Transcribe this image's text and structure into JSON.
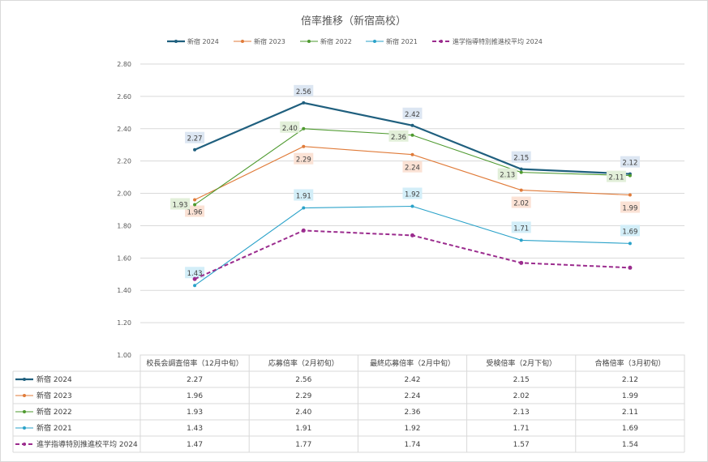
{
  "chart_data": {
    "type": "line",
    "title": "倍率推移（新宿高校）",
    "categories": [
      "校長会調査倍率（12月中旬）",
      "応募倍率（2月初旬）",
      "最終応募倍率（2月中旬）",
      "受検倍率（2月下旬）",
      "合格倍率（3月初旬）"
    ],
    "ylim": [
      1.0,
      2.8
    ],
    "yticks": [
      "1.00",
      "1.20",
      "1.40",
      "1.60",
      "1.80",
      "2.00",
      "2.20",
      "2.40",
      "2.60",
      "2.80"
    ],
    "grid": true,
    "legend": "top-center",
    "data_table": true,
    "series": [
      {
        "name": "新宿 2024",
        "values": [
          2.27,
          2.56,
          2.42,
          2.15,
          2.12
        ],
        "color": "#1f5f7e",
        "label_bg": "#dce6f2",
        "labels": true,
        "dashed": false,
        "width": 2.2
      },
      {
        "name": "新宿 2023",
        "values": [
          1.96,
          2.29,
          2.24,
          2.02,
          1.99
        ],
        "color": "#e07b39",
        "label_bg": "#fbe2d5",
        "labels": true,
        "dashed": false,
        "width": 1.1
      },
      {
        "name": "新宿 2022",
        "values": [
          1.93,
          2.4,
          2.36,
          2.13,
          2.11
        ],
        "color": "#4e9a2f",
        "label_bg": "#e2efd9",
        "labels": true,
        "dashed": false,
        "width": 1.1
      },
      {
        "name": "新宿 2021",
        "values": [
          1.43,
          1.91,
          1.92,
          1.71,
          1.69
        ],
        "color": "#2aa2c9",
        "label_bg": "#d3eef8",
        "labels": true,
        "dashed": false,
        "width": 1.1
      },
      {
        "name": "進学指導特別推進校平均 2024",
        "values": [
          1.47,
          1.77,
          1.74,
          1.57,
          1.54
        ],
        "color": "#9b2c8e",
        "label_bg": "",
        "labels": false,
        "dashed": true,
        "width": 2
      }
    ]
  }
}
